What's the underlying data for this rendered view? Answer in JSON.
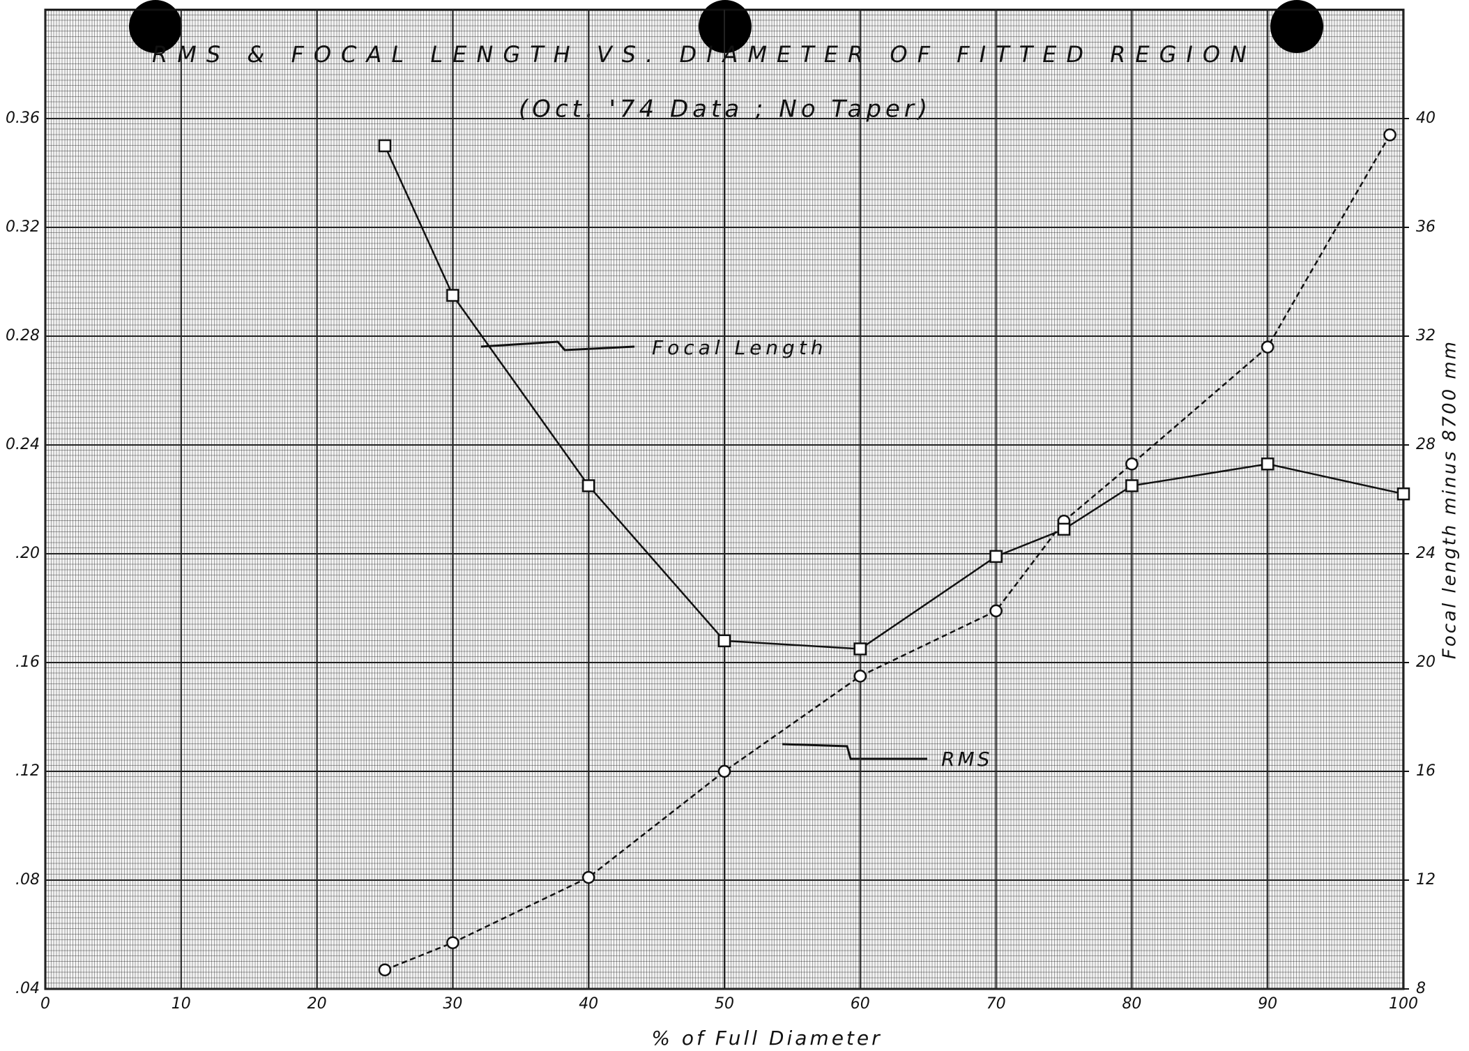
{
  "chart_data": {
    "type": "line",
    "title": "RMS & FOCAL LENGTH VS. DIAMETER OF FITTED REGION",
    "subtitle": "(Oct. '74 Data ; No Taper)",
    "x_label": "% of Full Diameter",
    "y2_label": "Focal length minus 8700 mm",
    "annotations": [
      "Focal Length",
      "RMS"
    ],
    "xlim": [
      0,
      100
    ],
    "xticks": [
      0,
      10,
      20,
      30,
      40,
      50,
      60,
      70,
      80,
      90,
      100
    ],
    "ylim": [
      0.04,
      0.4
    ],
    "yticks": [
      {
        "value": 0.04,
        "label": ".04"
      },
      {
        "value": 0.08,
        "label": ".08"
      },
      {
        "value": 0.12,
        "label": ".12"
      },
      {
        "value": 0.16,
        "label": ".16"
      },
      {
        "value": 0.2,
        "label": ".20"
      },
      {
        "value": 0.24,
        "label": "0.24"
      },
      {
        "value": 0.28,
        "label": "0.28"
      },
      0.32,
      0.36
    ],
    "y2lim": [
      8,
      44
    ],
    "y2ticks": [
      8,
      12,
      16,
      20,
      24,
      28,
      32,
      36,
      40
    ],
    "grid": true,
    "series": [
      {
        "name": "RMS",
        "color": "#111111",
        "marker": "circle",
        "dashed": true,
        "x": [
          25,
          30,
          40,
          50,
          60,
          70,
          75,
          80,
          90,
          99
        ],
        "values": [
          0.047,
          0.057,
          0.081,
          0.12,
          0.155,
          0.179,
          0.212,
          0.233,
          0.276,
          0.354
        ]
      },
      {
        "name": "Focal Length",
        "color": "#111111",
        "marker": "square",
        "axis": "y2",
        "dashed": false,
        "x": [
          25,
          30,
          40,
          50,
          60,
          70,
          75,
          80,
          90,
          100
        ],
        "values": [
          39.0,
          33.5,
          26.5,
          20.8,
          20.5,
          23.9,
          24.9,
          26.5,
          27.3,
          26.2
        ]
      }
    ]
  }
}
